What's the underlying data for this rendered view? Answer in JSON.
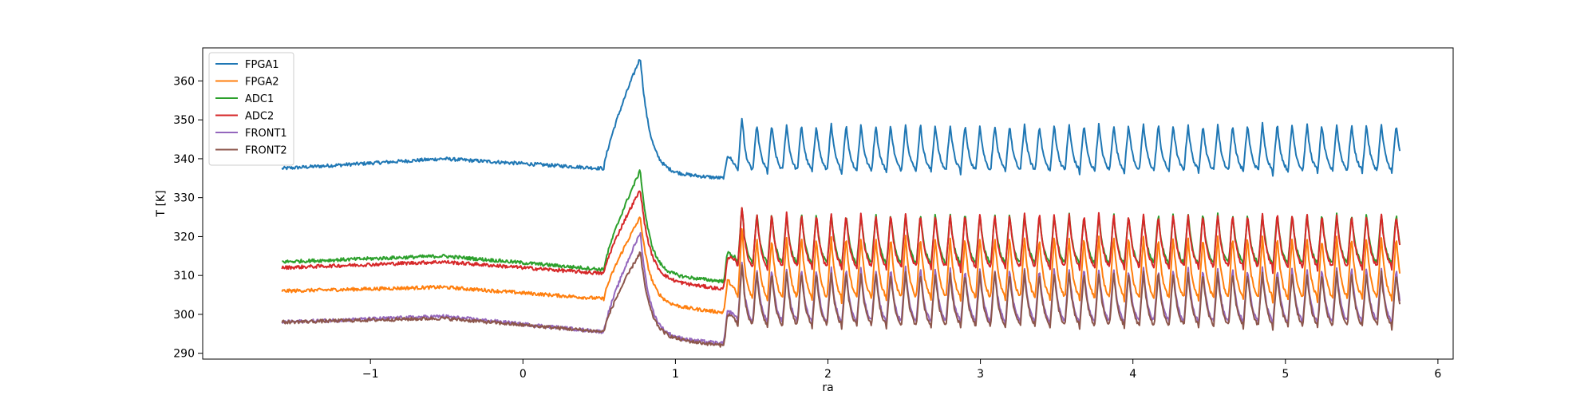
{
  "chart_data": {
    "type": "line",
    "title": "",
    "xlabel": "ra",
    "ylabel": "T [K]",
    "xlim": [
      -2.1,
      6.1
    ],
    "ylim": [
      288.5,
      368.5
    ],
    "xticks": [
      -1,
      0,
      1,
      2,
      3,
      4,
      5,
      6
    ],
    "xtick_labels": [
      "−1",
      "0",
      "1",
      "2",
      "3",
      "4",
      "5",
      "6"
    ],
    "yticks": [
      290,
      300,
      310,
      320,
      330,
      340,
      350,
      360
    ],
    "ytick_labels": [
      "290",
      "300",
      "310",
      "320",
      "330",
      "340",
      "350",
      "360"
    ],
    "grid": false,
    "legend_position": "upper-left",
    "phases": {
      "x_start": -1.58,
      "x_rise_start": 0.53,
      "x_peak": 0.77,
      "x_trough": 1.31,
      "x_end": 5.75,
      "cycle_period": 0.0975
    },
    "series": [
      {
        "name": "FPGA1",
        "color": "#1f77b4",
        "baseline": [
          337.5,
          340,
          337.5
        ],
        "peak": 366,
        "trough": 335,
        "cycle_low": 336,
        "cycle_high": 349
      },
      {
        "name": "FPGA2",
        "color": "#ff7f0e",
        "baseline": [
          306,
          307,
          304
        ],
        "peak": 325,
        "trough": 300.5,
        "cycle_low": 303,
        "cycle_high": 320
      },
      {
        "name": "ADC1",
        "color": "#2ca02c",
        "baseline": [
          313.5,
          315,
          311.5
        ],
        "peak": 337,
        "trough": 308.5,
        "cycle_low": 312,
        "cycle_high": 326
      },
      {
        "name": "ADC2",
        "color": "#d62728",
        "baseline": [
          312,
          313.5,
          310.5
        ],
        "peak": 332,
        "trough": 306.5,
        "cycle_low": 311,
        "cycle_high": 326
      },
      {
        "name": "FRONT1",
        "color": "#9467bd",
        "baseline": [
          298,
          299.5,
          295.5
        ],
        "peak": 321,
        "trough": 292.5,
        "cycle_low": 297,
        "cycle_high": 312
      },
      {
        "name": "FRONT2",
        "color": "#8c564b",
        "baseline": [
          298,
          299,
          295.5
        ],
        "peak": 316,
        "trough": 292,
        "cycle_low": 296,
        "cycle_high": 311
      }
    ]
  }
}
